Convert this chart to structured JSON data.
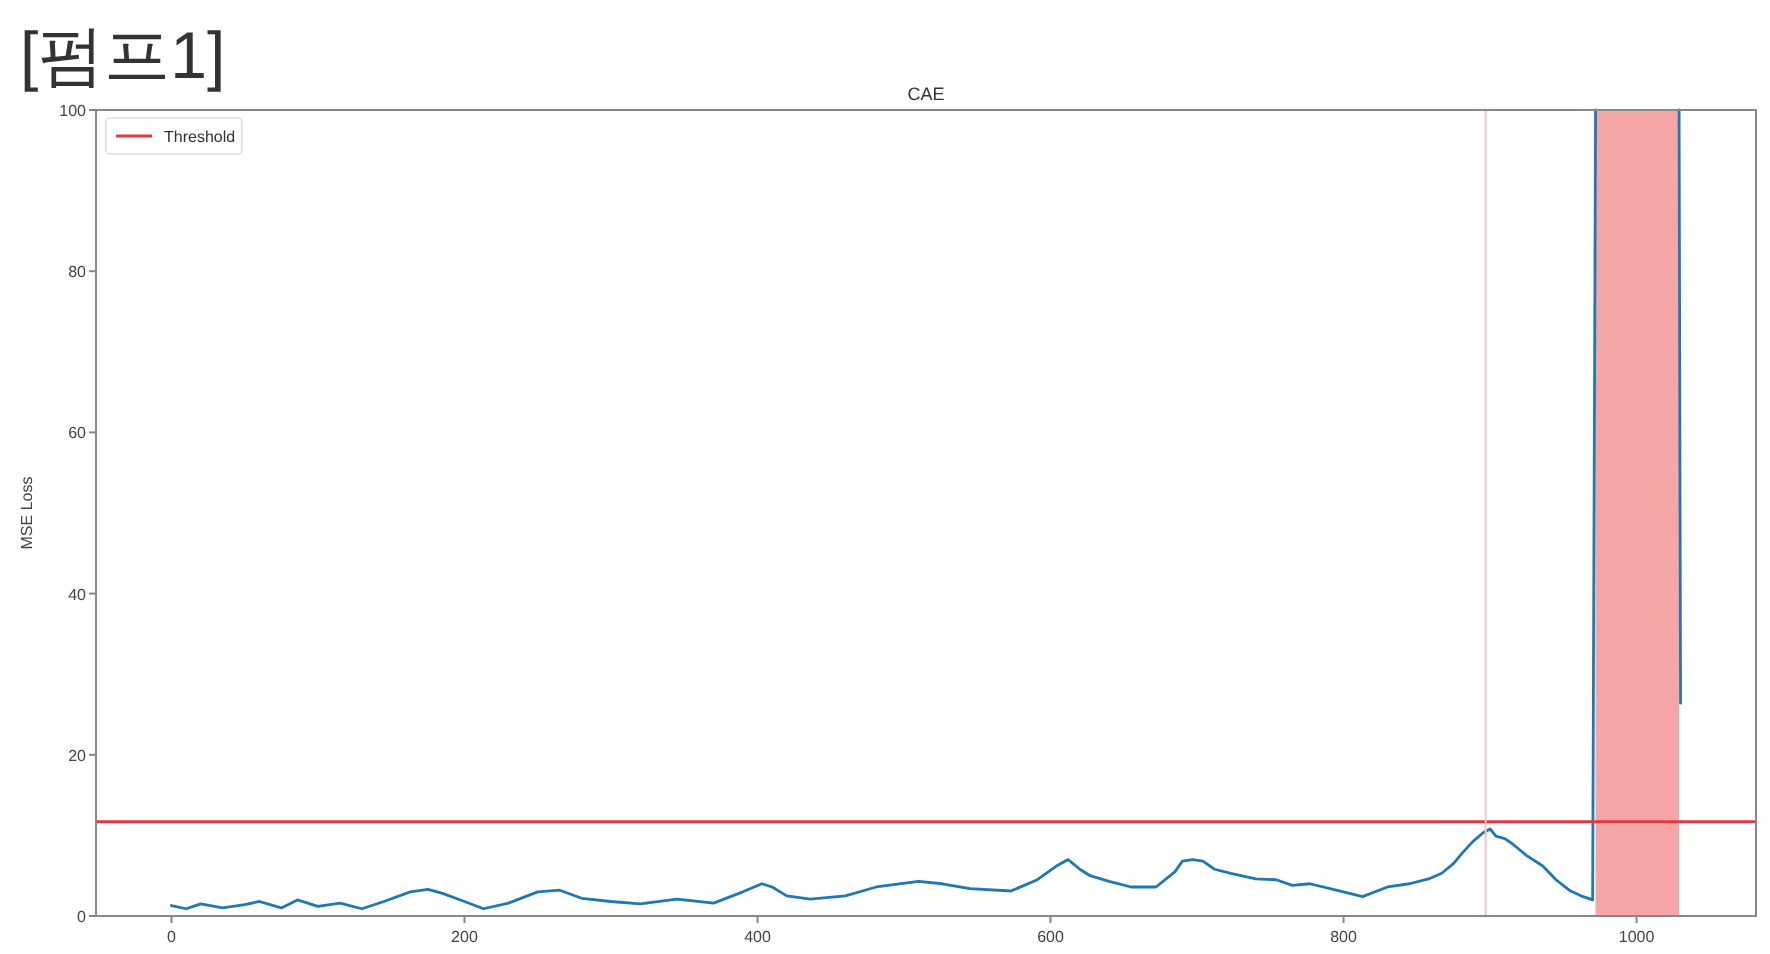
{
  "chart_data": {
    "type": "line",
    "title": "[펌프1]",
    "subtitle": "CAE",
    "ylabel": "MSE Loss",
    "xlim": [
      -51.5,
      1081.5
    ],
    "ylim": [
      0,
      100
    ],
    "xticks": [
      0,
      200,
      400,
      600,
      800,
      1000
    ],
    "yticks": [
      0,
      20,
      40,
      60,
      80,
      100
    ],
    "legend": "top left",
    "series": [
      {
        "color": "#1f77b4",
        "x": [
          0,
          10,
          20,
          35,
          50,
          60,
          75,
          86,
          100,
          115,
          130,
          145,
          163,
          175,
          185,
          200,
          213,
          230,
          250,
          265,
          280,
          300,
          320,
          345,
          370,
          390,
          403,
          410,
          420,
          436,
          460,
          481,
          510,
          526,
          545,
          573,
          591,
          604,
          612,
          620,
          627,
          640,
          655,
          672,
          685,
          690,
          697,
          704,
          712,
          723,
          740,
          754,
          765,
          777,
          795,
          813,
          830,
          845,
          858,
          867,
          875,
          881,
          888,
          895,
          900,
          904,
          910,
          915,
          925,
          936,
          945,
          954,
          962,
          970,
          972,
          1000,
          1029,
          1030
        ],
        "values": [
          1.3,
          0.9,
          1.5,
          1.0,
          1.4,
          1.8,
          1.0,
          2.0,
          1.2,
          1.6,
          0.9,
          1.8,
          3.0,
          3.3,
          2.8,
          1.8,
          0.9,
          1.6,
          3.0,
          3.2,
          2.2,
          1.8,
          1.5,
          2.1,
          1.6,
          3.0,
          4.0,
          3.6,
          2.5,
          2.1,
          2.5,
          3.6,
          4.3,
          4.0,
          3.4,
          3.1,
          4.5,
          6.2,
          7.0,
          5.8,
          5.0,
          4.3,
          3.6,
          3.6,
          5.5,
          6.8,
          7.0,
          6.8,
          5.8,
          5.3,
          4.6,
          4.5,
          3.8,
          4.0,
          3.2,
          2.4,
          3.6,
          4.0,
          4.6,
          5.3,
          6.5,
          7.8,
          9.2,
          10.3,
          10.8,
          9.9,
          9.6,
          9.0,
          7.5,
          6.2,
          4.5,
          3.2,
          2.5,
          2.0,
          100,
          null,
          100,
          26.4
        ]
      }
    ],
    "ref_lines": [
      {
        "axis": "y",
        "value": 11.7,
        "label": "Threshold",
        "color": "#e0393e"
      },
      {
        "axis": "x",
        "value": 897,
        "color": "#f5c4c8"
      }
    ],
    "bands": [
      {
        "axis": "x",
        "from": 972,
        "to": 1029,
        "color": "#f4a6a6"
      }
    ]
  }
}
